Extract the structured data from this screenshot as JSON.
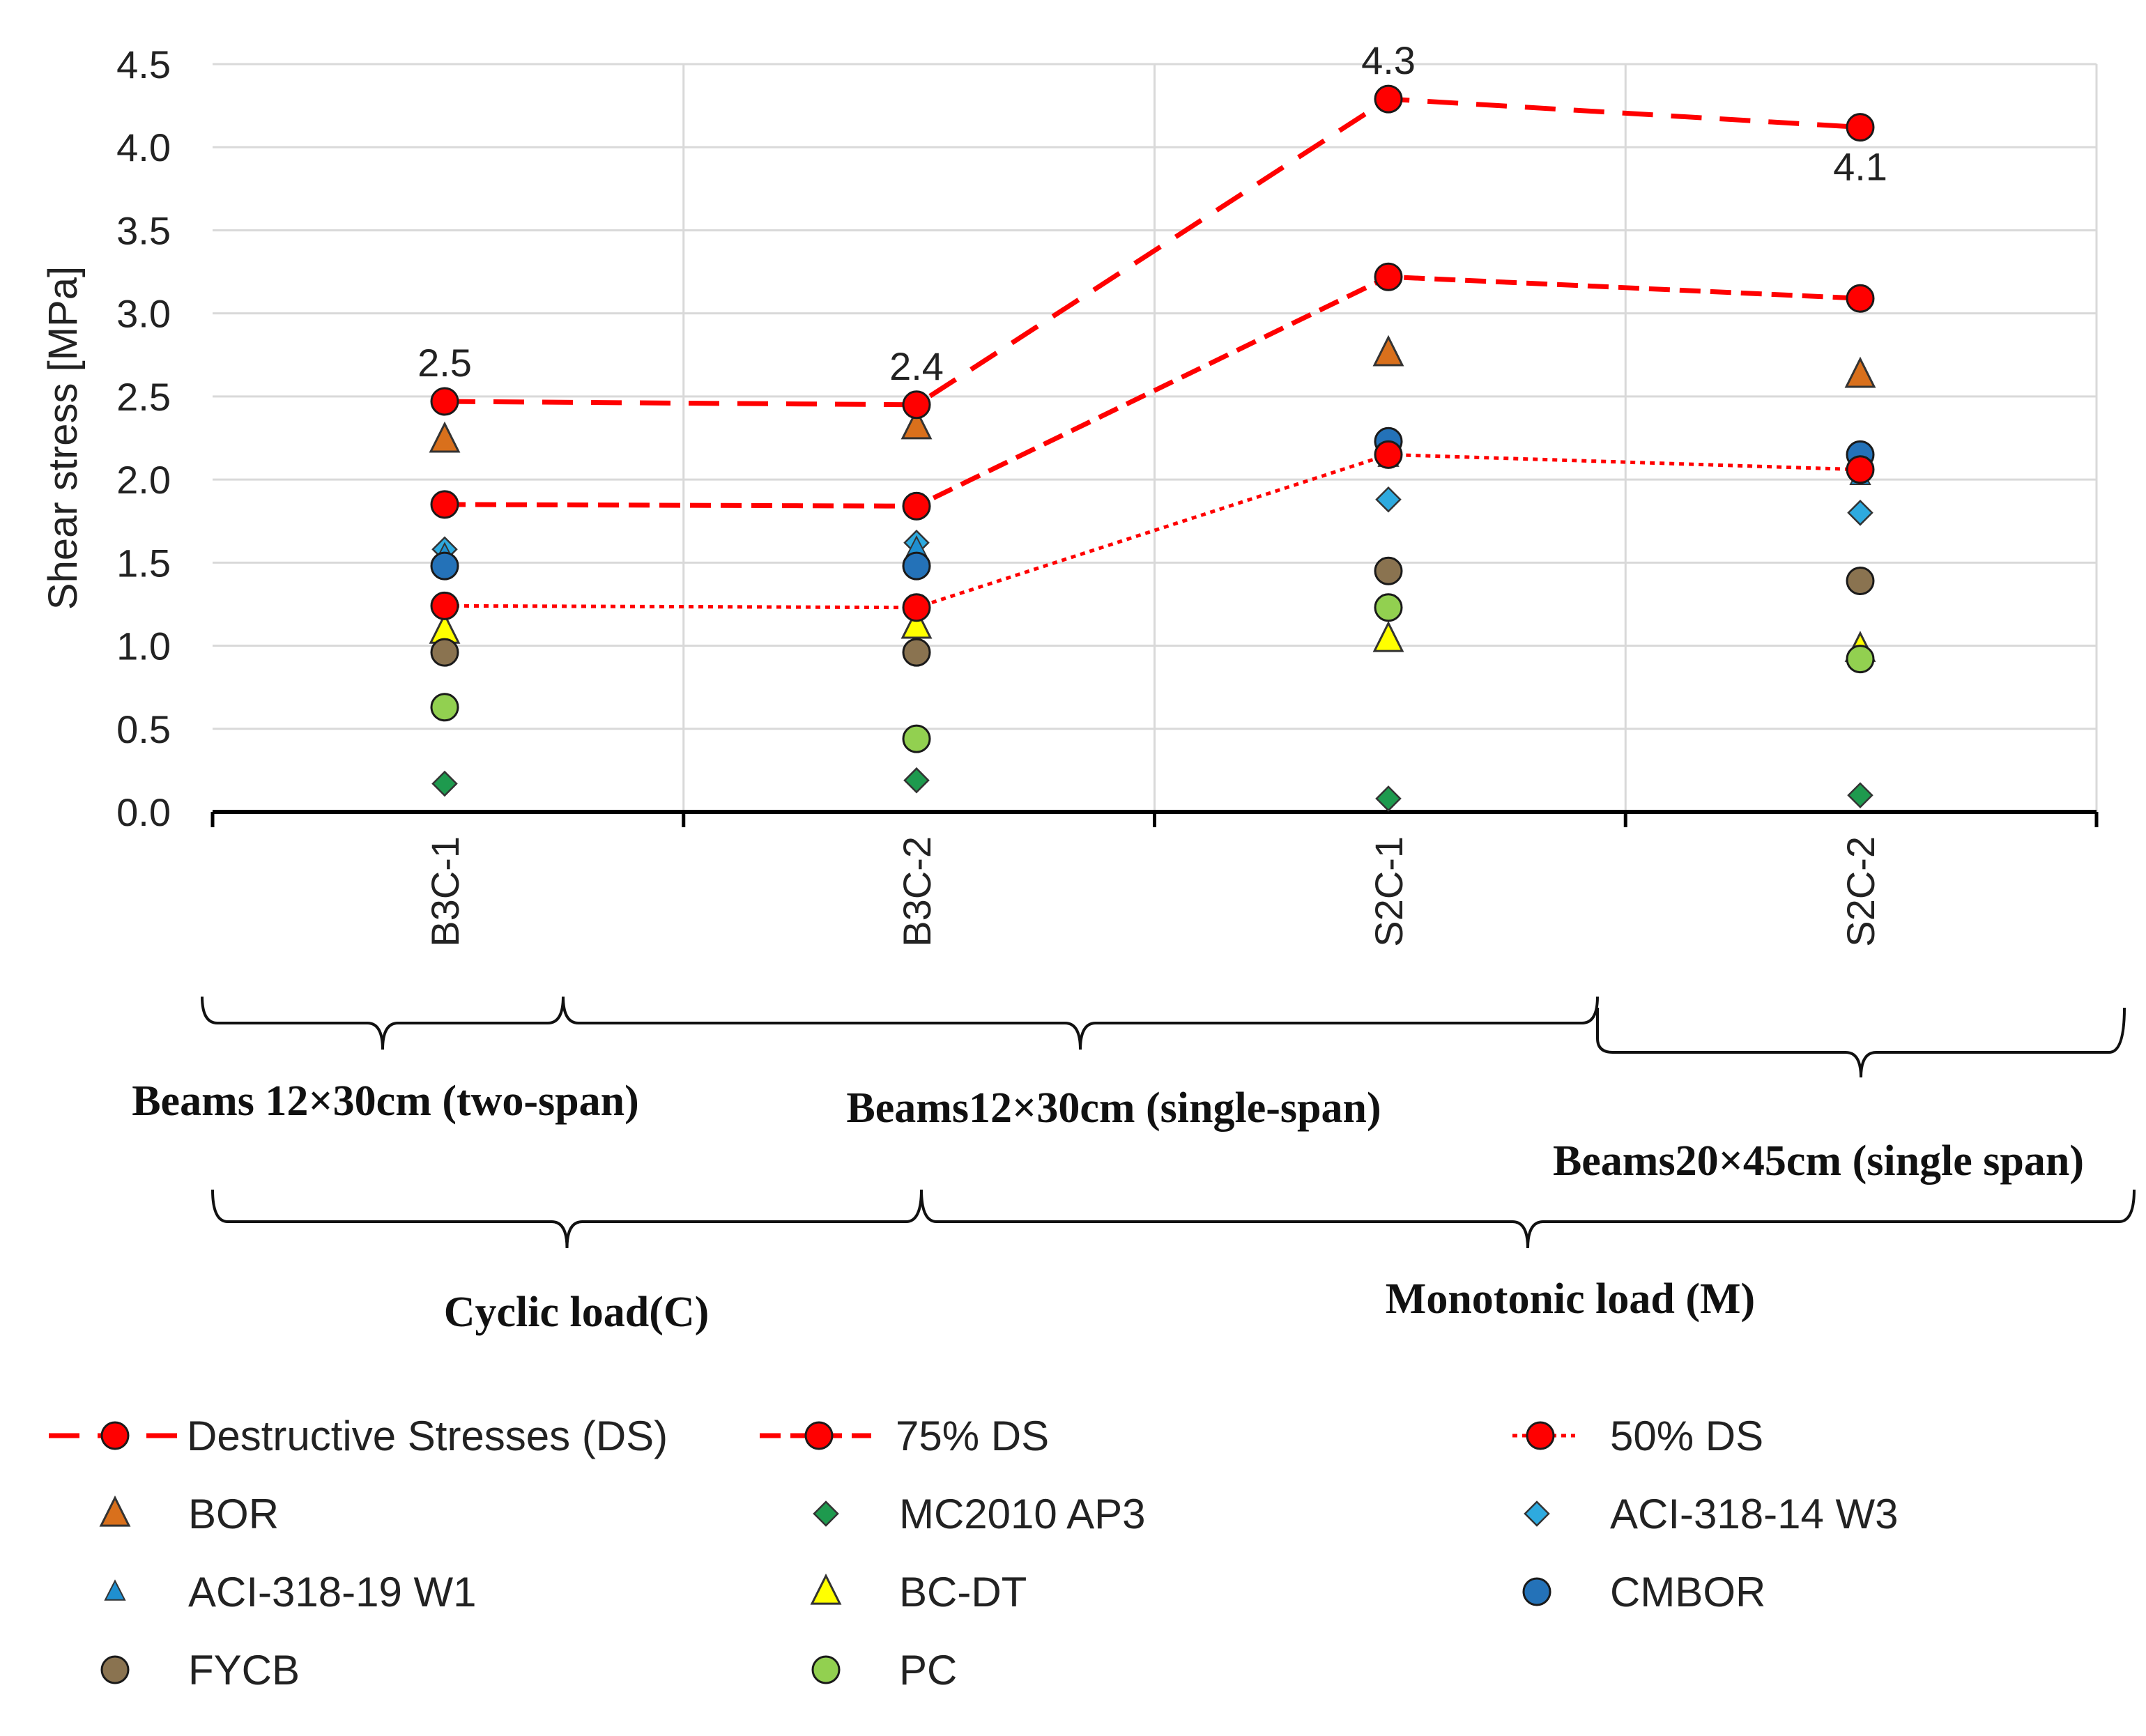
{
  "chart_data": {
    "type": "scatter",
    "title": "",
    "xlabel": "",
    "ylabel": "Shear stress [MPa]",
    "ylim": [
      0,
      4.5
    ],
    "yticks": [
      "0.0",
      "0.5",
      "1.0",
      "1.5",
      "2.0",
      "2.5",
      "3.0",
      "3.5",
      "4.0",
      "4.5"
    ],
    "grid": true,
    "categories": [
      "B3C-1",
      "B3C-2",
      "S2C-1",
      "S2C-2"
    ],
    "series": [
      {
        "name": "Destructive Stresses (DS)",
        "marker": "circle",
        "color": "#ff0000",
        "line": "dashed",
        "values": [
          2.47,
          2.45,
          4.29,
          4.12
        ]
      },
      {
        "name": "75% DS",
        "marker": "circle",
        "color": "#ff0000",
        "line": "dashed-short",
        "values": [
          1.85,
          1.84,
          3.22,
          3.09
        ]
      },
      {
        "name": "50% DS",
        "marker": "circle",
        "color": "#ff0000",
        "line": "dotted",
        "values": [
          1.24,
          1.23,
          2.15,
          2.06
        ]
      },
      {
        "name": "BOR",
        "marker": "triangle",
        "color": "#d9701c",
        "values": [
          2.24,
          2.32,
          2.76,
          2.63
        ]
      },
      {
        "name": "MC2010 AP3",
        "marker": "diamond",
        "color": "#1e9a4e",
        "values": [
          0.17,
          0.19,
          0.08,
          0.1
        ]
      },
      {
        "name": "ACI-318-14 W3",
        "marker": "diamond",
        "color": "#2eaadf",
        "values": [
          1.58,
          1.62,
          1.88,
          1.8
        ]
      },
      {
        "name": "ACI-318-19 W1",
        "marker": "triangle-small",
        "color": "#1f8fd0",
        "values": [
          1.55,
          1.59,
          2.13,
          2.02
        ]
      },
      {
        "name": "BC-DT",
        "marker": "triangle",
        "color": "#ffff00",
        "values": [
          1.09,
          1.12,
          1.04,
          0.98
        ]
      },
      {
        "name": "CMBOR",
        "marker": "circle",
        "color": "#2472b8",
        "values": [
          1.48,
          1.48,
          2.23,
          2.15
        ]
      },
      {
        "name": "FYCB",
        "marker": "circle",
        "color": "#8a7350",
        "values": [
          0.96,
          0.96,
          1.45,
          1.39
        ]
      },
      {
        "name": "PC",
        "marker": "circle",
        "color": "#92d050",
        "values": [
          0.63,
          0.44,
          1.23,
          0.92
        ]
      }
    ],
    "annotations": [
      {
        "category": "B3C-1",
        "text": "2.5",
        "value": 2.47,
        "position": "above"
      },
      {
        "category": "B3C-2",
        "text": "2.4",
        "value": 2.45,
        "position": "above"
      },
      {
        "category": "S2C-1",
        "text": "4.3",
        "value": 4.29,
        "position": "above"
      },
      {
        "category": "S2C-2",
        "text": "4.1",
        "value": 4.12,
        "position": "below"
      }
    ],
    "groups": [
      {
        "label": "Beams 12×30cm (two-span)",
        "row": 1,
        "from": "B3C-1",
        "to": "B3C-1"
      },
      {
        "label": "Beams12×30cm (single-span)",
        "row": 1,
        "from": "B3C-2",
        "to": "S2C-1"
      },
      {
        "label": "Beams20×45cm (single span)",
        "row": 1,
        "from": "S2C-2",
        "to": "S2C-2"
      },
      {
        "label": "Cyclic load(C)",
        "row": 2,
        "from": "B3C-1",
        "to": "B3C-2"
      },
      {
        "label": "Monotonic load (M)",
        "row": 2,
        "from": "S2C-1",
        "to": "S2C-2"
      }
    ],
    "legend_position": "bottom"
  }
}
